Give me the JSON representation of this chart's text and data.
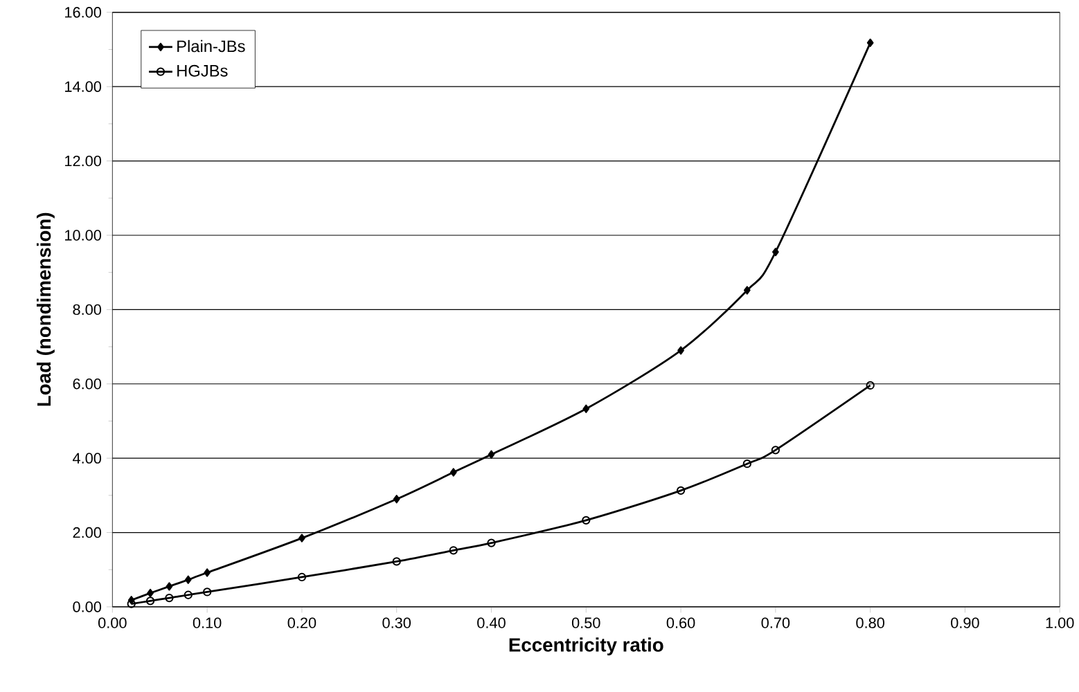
{
  "chart_data": {
    "type": "line",
    "xlabel": "Eccentricity ratio",
    "ylabel": "Load (nondimension)",
    "xlim": [
      0,
      1
    ],
    "ylim": [
      0,
      16
    ],
    "xticks": [
      {
        "value": 0,
        "label": "0.00"
      },
      {
        "value": 0.1,
        "label": "0.10"
      },
      {
        "value": 0.2,
        "label": "0.20"
      },
      {
        "value": 0.3,
        "label": "0.30"
      },
      {
        "value": 0.4,
        "label": "0.40"
      },
      {
        "value": 0.5,
        "label": "0.50"
      },
      {
        "value": 0.6,
        "label": "0.60"
      },
      {
        "value": 0.7,
        "label": "0.70"
      },
      {
        "value": 0.8,
        "label": "0.80"
      },
      {
        "value": 0.9,
        "label": "0.90"
      },
      {
        "value": 1,
        "label": "1.00"
      }
    ],
    "yticks": [
      {
        "value": 0,
        "label": "0.00"
      },
      {
        "value": 2,
        "label": "2.00"
      },
      {
        "value": 4,
        "label": "4.00"
      },
      {
        "value": 6,
        "label": "6.00"
      },
      {
        "value": 8,
        "label": "8.00"
      },
      {
        "value": 10,
        "label": "10.00"
      },
      {
        "value": 12,
        "label": "12.00"
      },
      {
        "value": 14,
        "label": "14.00"
      },
      {
        "value": 16,
        "label": "16.00"
      }
    ],
    "grid": "y",
    "legend": "top left",
    "line_style": "solid",
    "x": [
      0.02,
      0.04,
      0.06,
      0.08,
      0.1,
      0.2,
      0.3,
      0.36,
      0.4,
      0.5,
      0.6,
      0.67,
      0.7,
      0.8
    ],
    "series": [
      {
        "name": "Plain-JBs",
        "color": "#000000",
        "marker": "diamond",
        "values": [
          0.18,
          0.37,
          0.55,
          0.73,
          0.92,
          1.85,
          2.9,
          3.62,
          4.1,
          5.33,
          6.9,
          8.52,
          9.55,
          15.18
        ]
      },
      {
        "name": "HGJBs",
        "color": "#000000",
        "marker": "circle",
        "values": [
          0.08,
          0.16,
          0.24,
          0.32,
          0.4,
          0.8,
          1.22,
          1.52,
          1.72,
          2.33,
          3.13,
          3.85,
          4.22,
          5.96
        ]
      }
    ]
  }
}
